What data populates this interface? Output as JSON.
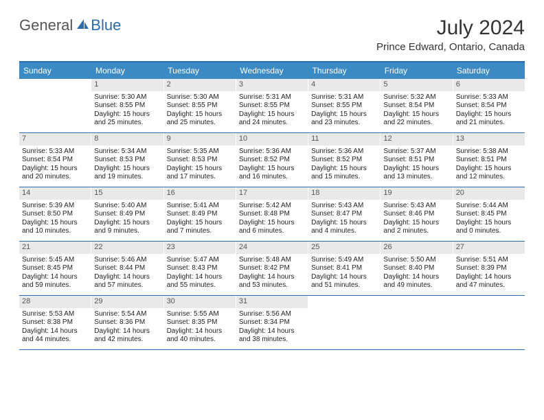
{
  "brand": {
    "part1": "General",
    "part2": "Blue"
  },
  "title": "July 2024",
  "location": "Prince Edward, Ontario, Canada",
  "colors": {
    "header_bg": "#3b8ac4",
    "border": "#2a6cb0",
    "daynum_bg": "#e9e9e9",
    "text": "#222222",
    "title": "#333333"
  },
  "day_headers": [
    "Sunday",
    "Monday",
    "Tuesday",
    "Wednesday",
    "Thursday",
    "Friday",
    "Saturday"
  ],
  "weeks": [
    [
      {
        "num": "",
        "sunrise": "",
        "sunset": "",
        "daylight": ""
      },
      {
        "num": "1",
        "sunrise": "Sunrise: 5:30 AM",
        "sunset": "Sunset: 8:55 PM",
        "daylight": "Daylight: 15 hours and 25 minutes."
      },
      {
        "num": "2",
        "sunrise": "Sunrise: 5:30 AM",
        "sunset": "Sunset: 8:55 PM",
        "daylight": "Daylight: 15 hours and 25 minutes."
      },
      {
        "num": "3",
        "sunrise": "Sunrise: 5:31 AM",
        "sunset": "Sunset: 8:55 PM",
        "daylight": "Daylight: 15 hours and 24 minutes."
      },
      {
        "num": "4",
        "sunrise": "Sunrise: 5:31 AM",
        "sunset": "Sunset: 8:55 PM",
        "daylight": "Daylight: 15 hours and 23 minutes."
      },
      {
        "num": "5",
        "sunrise": "Sunrise: 5:32 AM",
        "sunset": "Sunset: 8:54 PM",
        "daylight": "Daylight: 15 hours and 22 minutes."
      },
      {
        "num": "6",
        "sunrise": "Sunrise: 5:33 AM",
        "sunset": "Sunset: 8:54 PM",
        "daylight": "Daylight: 15 hours and 21 minutes."
      }
    ],
    [
      {
        "num": "7",
        "sunrise": "Sunrise: 5:33 AM",
        "sunset": "Sunset: 8:54 PM",
        "daylight": "Daylight: 15 hours and 20 minutes."
      },
      {
        "num": "8",
        "sunrise": "Sunrise: 5:34 AM",
        "sunset": "Sunset: 8:53 PM",
        "daylight": "Daylight: 15 hours and 19 minutes."
      },
      {
        "num": "9",
        "sunrise": "Sunrise: 5:35 AM",
        "sunset": "Sunset: 8:53 PM",
        "daylight": "Daylight: 15 hours and 17 minutes."
      },
      {
        "num": "10",
        "sunrise": "Sunrise: 5:36 AM",
        "sunset": "Sunset: 8:52 PM",
        "daylight": "Daylight: 15 hours and 16 minutes."
      },
      {
        "num": "11",
        "sunrise": "Sunrise: 5:36 AM",
        "sunset": "Sunset: 8:52 PM",
        "daylight": "Daylight: 15 hours and 15 minutes."
      },
      {
        "num": "12",
        "sunrise": "Sunrise: 5:37 AM",
        "sunset": "Sunset: 8:51 PM",
        "daylight": "Daylight: 15 hours and 13 minutes."
      },
      {
        "num": "13",
        "sunrise": "Sunrise: 5:38 AM",
        "sunset": "Sunset: 8:51 PM",
        "daylight": "Daylight: 15 hours and 12 minutes."
      }
    ],
    [
      {
        "num": "14",
        "sunrise": "Sunrise: 5:39 AM",
        "sunset": "Sunset: 8:50 PM",
        "daylight": "Daylight: 15 hours and 10 minutes."
      },
      {
        "num": "15",
        "sunrise": "Sunrise: 5:40 AM",
        "sunset": "Sunset: 8:49 PM",
        "daylight": "Daylight: 15 hours and 9 minutes."
      },
      {
        "num": "16",
        "sunrise": "Sunrise: 5:41 AM",
        "sunset": "Sunset: 8:49 PM",
        "daylight": "Daylight: 15 hours and 7 minutes."
      },
      {
        "num": "17",
        "sunrise": "Sunrise: 5:42 AM",
        "sunset": "Sunset: 8:48 PM",
        "daylight": "Daylight: 15 hours and 6 minutes."
      },
      {
        "num": "18",
        "sunrise": "Sunrise: 5:43 AM",
        "sunset": "Sunset: 8:47 PM",
        "daylight": "Daylight: 15 hours and 4 minutes."
      },
      {
        "num": "19",
        "sunrise": "Sunrise: 5:43 AM",
        "sunset": "Sunset: 8:46 PM",
        "daylight": "Daylight: 15 hours and 2 minutes."
      },
      {
        "num": "20",
        "sunrise": "Sunrise: 5:44 AM",
        "sunset": "Sunset: 8:45 PM",
        "daylight": "Daylight: 15 hours and 0 minutes."
      }
    ],
    [
      {
        "num": "21",
        "sunrise": "Sunrise: 5:45 AM",
        "sunset": "Sunset: 8:45 PM",
        "daylight": "Daylight: 14 hours and 59 minutes."
      },
      {
        "num": "22",
        "sunrise": "Sunrise: 5:46 AM",
        "sunset": "Sunset: 8:44 PM",
        "daylight": "Daylight: 14 hours and 57 minutes."
      },
      {
        "num": "23",
        "sunrise": "Sunrise: 5:47 AM",
        "sunset": "Sunset: 8:43 PM",
        "daylight": "Daylight: 14 hours and 55 minutes."
      },
      {
        "num": "24",
        "sunrise": "Sunrise: 5:48 AM",
        "sunset": "Sunset: 8:42 PM",
        "daylight": "Daylight: 14 hours and 53 minutes."
      },
      {
        "num": "25",
        "sunrise": "Sunrise: 5:49 AM",
        "sunset": "Sunset: 8:41 PM",
        "daylight": "Daylight: 14 hours and 51 minutes."
      },
      {
        "num": "26",
        "sunrise": "Sunrise: 5:50 AM",
        "sunset": "Sunset: 8:40 PM",
        "daylight": "Daylight: 14 hours and 49 minutes."
      },
      {
        "num": "27",
        "sunrise": "Sunrise: 5:51 AM",
        "sunset": "Sunset: 8:39 PM",
        "daylight": "Daylight: 14 hours and 47 minutes."
      }
    ],
    [
      {
        "num": "28",
        "sunrise": "Sunrise: 5:53 AM",
        "sunset": "Sunset: 8:38 PM",
        "daylight": "Daylight: 14 hours and 44 minutes."
      },
      {
        "num": "29",
        "sunrise": "Sunrise: 5:54 AM",
        "sunset": "Sunset: 8:36 PM",
        "daylight": "Daylight: 14 hours and 42 minutes."
      },
      {
        "num": "30",
        "sunrise": "Sunrise: 5:55 AM",
        "sunset": "Sunset: 8:35 PM",
        "daylight": "Daylight: 14 hours and 40 minutes."
      },
      {
        "num": "31",
        "sunrise": "Sunrise: 5:56 AM",
        "sunset": "Sunset: 8:34 PM",
        "daylight": "Daylight: 14 hours and 38 minutes."
      },
      {
        "num": "",
        "sunrise": "",
        "sunset": "",
        "daylight": ""
      },
      {
        "num": "",
        "sunrise": "",
        "sunset": "",
        "daylight": ""
      },
      {
        "num": "",
        "sunrise": "",
        "sunset": "",
        "daylight": ""
      }
    ]
  ]
}
